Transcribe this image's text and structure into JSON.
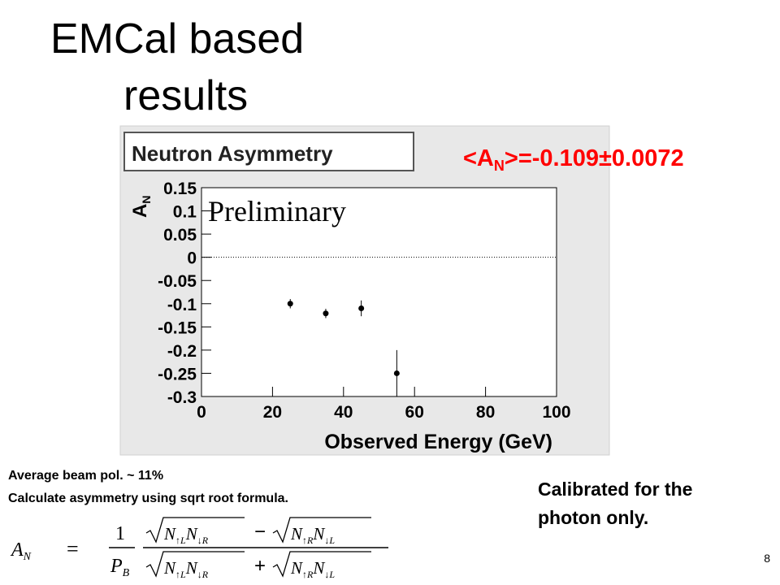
{
  "slide": {
    "title_lines": [
      "EMCal based",
      "results"
    ],
    "notes": [
      "Average beam pol. ~ 11%",
      "Calculate asymmetry  using sqrt root  formula."
    ],
    "side_note": [
      "Calibrated for the",
      "photon only."
    ],
    "result": {
      "pre": "<A",
      "sub": "N",
      "post": ">=-0.109±0.0072"
    },
    "formula": {
      "lhs": [
        "A",
        "N"
      ],
      "eq": "=",
      "num": "1",
      "den": [
        "P",
        "B"
      ],
      "minus": "−",
      "plus": "+",
      "terms": [
        [
          [
            "N",
            "↑L"
          ],
          [
            "N",
            "↓R"
          ]
        ],
        [
          [
            "N",
            "↑R"
          ],
          [
            "N",
            "↓L"
          ]
        ]
      ]
    },
    "page_number": "8"
  },
  "chart_data": {
    "type": "scatter",
    "title": "Neutron Asymmetry",
    "annotation": "Preliminary",
    "x_label": "Observed Energy (GeV)",
    "y_label": [
      "A",
      "N"
    ],
    "x": [
      25,
      35,
      45,
      55
    ],
    "values": [
      -0.1,
      -0.121,
      -0.11,
      -0.25
    ],
    "errors": [
      0.01,
      0.01,
      0.017,
      0.05
    ],
    "color": "#000000",
    "reference_line": 0,
    "xlim": [
      0,
      100
    ],
    "xticks": [
      0,
      20,
      40,
      60,
      80,
      100
    ],
    "ylim": [
      -0.3,
      0.15
    ],
    "yticks": [
      0.15,
      0.1,
      0.05,
      0,
      -0.05,
      -0.1,
      -0.15,
      -0.2,
      -0.25,
      -0.3
    ]
  }
}
